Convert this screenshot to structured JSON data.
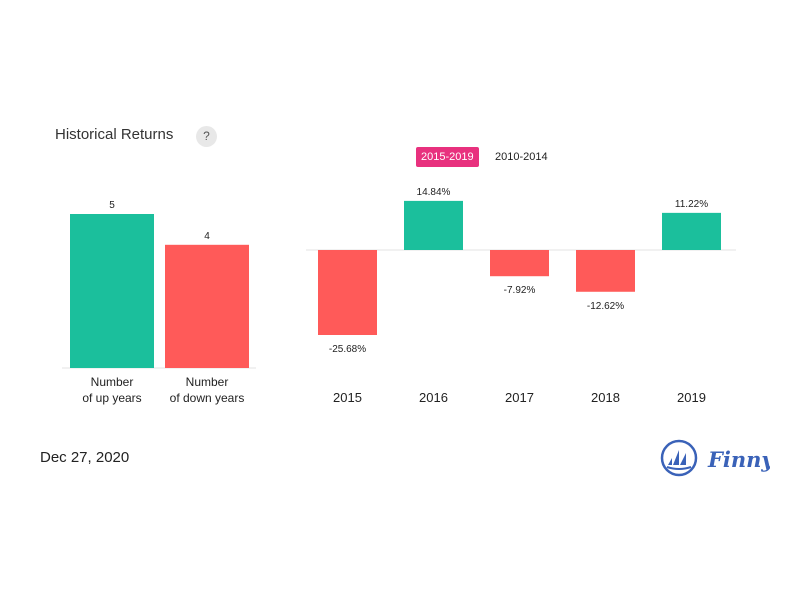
{
  "header": {
    "title": "Historical Returns",
    "help_label": "?"
  },
  "toggle": {
    "active_label": "2015-2019",
    "inactive_label": "2010-2014"
  },
  "footer": {
    "date": "Dec 27, 2020",
    "brand": "Finny"
  },
  "colors": {
    "positive": "#1bbf9c",
    "negative": "#ff5a59",
    "accent": "#e8317e",
    "brand": "#3a62b8"
  },
  "chart_data": [
    {
      "type": "bar",
      "categories": [
        [
          "Number",
          "of up years"
        ],
        [
          "Number",
          "of down years"
        ]
      ],
      "values": [
        5,
        4
      ],
      "value_labels": [
        "5",
        "4"
      ],
      "colors": [
        "#1bbf9c",
        "#ff5a59"
      ],
      "ylim": [
        0,
        5
      ],
      "grid": false
    },
    {
      "type": "bar",
      "categories": [
        "2015",
        "2016",
        "2017",
        "2018",
        "2019"
      ],
      "values": [
        -25.68,
        14.84,
        -7.92,
        -12.62,
        11.22
      ],
      "value_labels": [
        "-25.68%",
        "14.84%",
        "-7.92%",
        "-12.62%",
        "11.22%"
      ],
      "unit": "%",
      "grid": false
    }
  ]
}
